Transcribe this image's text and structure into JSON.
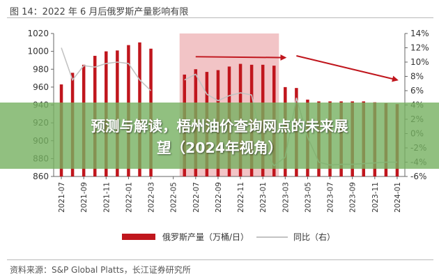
{
  "figure": {
    "title": "图 14：2022 年 6 月后俄罗斯产量影响有限",
    "source": "资料来源：S&P Global Platts，长江证券研究所"
  },
  "banner": {
    "line1": "预测与解读，梧州油价查询网点的未来展",
    "line2": "望（2024年视角）"
  },
  "chart_data": {
    "type": "bar",
    "x_tick_labels": [
      "2021-07",
      "2021-09",
      "2021-11",
      "2022-01",
      "2022-03",
      "2022-05",
      "2022-07",
      "2022-09",
      "2022-11",
      "2023-01",
      "2023-03",
      "2023-05",
      "2023-07",
      "2023-09",
      "2023-11",
      "2024-01"
    ],
    "categories": [
      "2021-07",
      "2021-08",
      "2021-09",
      "2021-10",
      "2021-11",
      "2021-12",
      "2022-01",
      "2022-02",
      "2022-03",
      "2022-04",
      "2022-05",
      "2022-06",
      "2022-07",
      "2022-08",
      "2022-09",
      "2022-10",
      "2022-11",
      "2022-12",
      "2023-01",
      "2023-02",
      "2023-03",
      "2023-04",
      "2023-05",
      "2023-06",
      "2023-07",
      "2023-08",
      "2023-09",
      "2023-10",
      "2023-11",
      "2023-12",
      "2024-01"
    ],
    "series": [
      {
        "name": "俄罗斯产量（万桶/日）",
        "type": "bar",
        "axis": "left",
        "color": "#c0161d",
        "values": [
          963,
          976,
          985,
          995,
          1000,
          1001,
          1007,
          1010,
          1003,
          null,
          null,
          974,
          980,
          977,
          979,
          983,
          986,
          985,
          985,
          984,
          960,
          959,
          946,
          944,
          944,
          944,
          944,
          944,
          943,
          942,
          941
        ]
      },
      {
        "name": "同比（右）",
        "type": "line",
        "axis": "right",
        "color": "#c3c3c3",
        "values": [
          12,
          7.5,
          9.5,
          9.3,
          9.8,
          10,
          9.8,
          7.5,
          6,
          null,
          null,
          7.5,
          8.3,
          5.5,
          4.6,
          5.3,
          5.7,
          5.4,
          -2,
          -4.5,
          -3.3,
          5,
          -0.5,
          -4,
          -4.4,
          -4.3,
          -4.3,
          -4.2,
          -4.1,
          -4.0,
          -4.0
        ]
      }
    ],
    "left_axis": {
      "ylim": [
        860,
        1020
      ],
      "ticks": [
        860,
        880,
        900,
        920,
        940,
        960,
        980,
        1000,
        1020
      ]
    },
    "right_axis": {
      "ylim": [
        -6,
        14
      ],
      "ticks": [
        "-6%",
        "-4%",
        "-2%",
        "0%",
        "2%",
        "4%",
        "6%",
        "8%",
        "10%",
        "12%",
        "14%"
      ]
    },
    "highlight": {
      "start": "2022-06",
      "end": "2023-02",
      "color": "#f2c4c6"
    },
    "arrows": [
      {
        "from": "2022-07",
        "from_value": 994,
        "to": "2023-03",
        "to_value": 993
      },
      {
        "from": "2023-04",
        "from_value": 995,
        "to": "2024-01",
        "to_value": 968
      }
    ],
    "legend": {
      "position": "bottom"
    }
  }
}
